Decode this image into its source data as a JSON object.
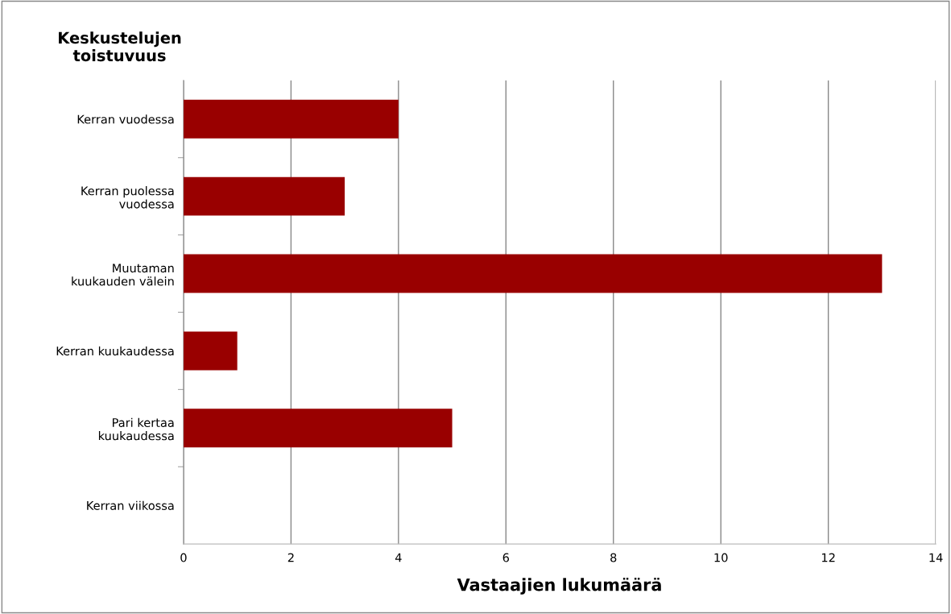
{
  "chart_data": {
    "type": "bar",
    "orientation": "horizontal",
    "ylabel": "Keskustelujen\ntoistuvuus",
    "xlabel": "Vastaajien lukumäärä",
    "categories": [
      "Kerran vuodessa",
      "Kerran puolessa\nvuodessa",
      "Muutaman\nkuukauden välein",
      "Kerran kuukaudessa",
      "Pari kertaa\nkuukaudessa",
      "Kerran viikossa"
    ],
    "values": [
      4,
      3,
      13,
      1,
      5,
      0
    ],
    "color": "#990000",
    "xlim": [
      0,
      14
    ],
    "xticks": [
      0,
      2,
      4,
      6,
      8,
      10,
      12,
      14
    ],
    "grid": "x",
    "legend": false
  }
}
